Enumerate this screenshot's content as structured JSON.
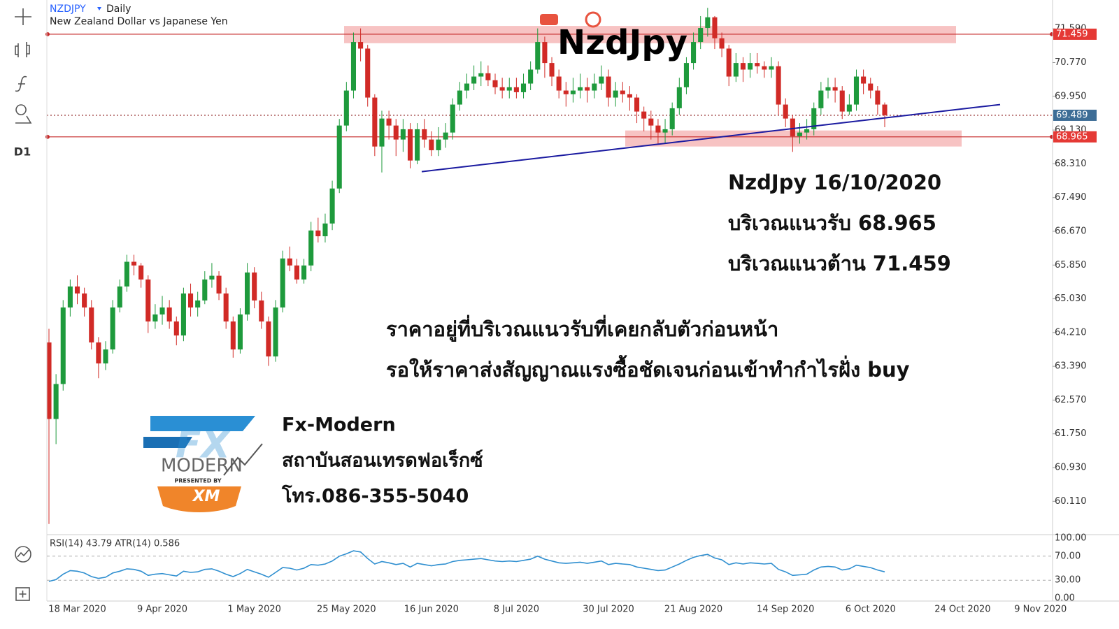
{
  "header": {
    "symbol": "NZDJPY",
    "interval": "Daily",
    "description": "New Zealand Dollar vs Japanese Yen"
  },
  "toolbar": {
    "timeframe": "D1"
  },
  "chart_data": {
    "type": "candlestick",
    "title": "NzdJpy",
    "categories": [
      null,
      null,
      null,
      null,
      "18 Mar 2020",
      null,
      null,
      null,
      null,
      null,
      null,
      null,
      null,
      null,
      null,
      null,
      "9 Apr 2020",
      null,
      null,
      null,
      null,
      null,
      null,
      null,
      null,
      null,
      null,
      null,
      null,
      "1 May 2020",
      null,
      null,
      null,
      null,
      null,
      null,
      null,
      null,
      null,
      null,
      null,
      null,
      "25 May 2020",
      null,
      null,
      null,
      null,
      null,
      null,
      null,
      null,
      null,
      null,
      null,
      "16 Jun 2020",
      null,
      null,
      null,
      null,
      null,
      null,
      null,
      null,
      null,
      null,
      null,
      "8 Jul 2020",
      null,
      null,
      null,
      null,
      null,
      null,
      null,
      null,
      null,
      null,
      null,
      null,
      "30 Jul 2020",
      null,
      null,
      null,
      null,
      null,
      null,
      null,
      null,
      null,
      null,
      null,
      "21 Aug 2020",
      null,
      null,
      null,
      null,
      null,
      null,
      null,
      null,
      null,
      null,
      null,
      null,
      "14 Sep 2020",
      null,
      null,
      null,
      null,
      null,
      null,
      null,
      null,
      null,
      null,
      null,
      "6 Oct 2020",
      null,
      null,
      null,
      null,
      null,
      null,
      null,
      null,
      null,
      null,
      null,
      null,
      "24 Oct 2020",
      null,
      null,
      null,
      null,
      null,
      null,
      null,
      null,
      null,
      null,
      "9 Nov 2020"
    ],
    "ohlc": [
      [
        63.97,
        64.3,
        59.56,
        62.11
      ],
      [
        62.11,
        63.2,
        61.5,
        62.96
      ],
      [
        62.96,
        65.0,
        62.8,
        64.82
      ],
      [
        64.82,
        65.5,
        64.6,
        65.33
      ],
      [
        65.33,
        65.6,
        64.9,
        65.16
      ],
      [
        65.16,
        65.3,
        64.6,
        64.82
      ],
      [
        64.82,
        65.0,
        63.8,
        63.97
      ],
      [
        63.97,
        64.1,
        63.1,
        63.46
      ],
      [
        63.46,
        64.0,
        63.3,
        63.8
      ],
      [
        63.8,
        65.0,
        63.7,
        64.82
      ],
      [
        64.82,
        65.5,
        64.7,
        65.33
      ],
      [
        65.33,
        66.1,
        65.2,
        65.93
      ],
      [
        65.93,
        66.1,
        65.6,
        65.84
      ],
      [
        65.84,
        65.9,
        65.3,
        65.5
      ],
      [
        65.5,
        65.6,
        64.2,
        64.48
      ],
      [
        64.48,
        64.9,
        64.3,
        64.65
      ],
      [
        64.65,
        65.1,
        64.4,
        64.82
      ],
      [
        64.82,
        65.0,
        64.3,
        64.48
      ],
      [
        64.48,
        64.6,
        63.9,
        64.14
      ],
      [
        64.14,
        65.3,
        64.0,
        65.16
      ],
      [
        65.16,
        65.4,
        64.6,
        64.82
      ],
      [
        64.82,
        65.2,
        64.6,
        64.99
      ],
      [
        64.99,
        65.7,
        64.9,
        65.5
      ],
      [
        65.5,
        65.9,
        65.3,
        65.59
      ],
      [
        65.59,
        65.7,
        65.0,
        65.16
      ],
      [
        65.16,
        65.3,
        64.3,
        64.48
      ],
      [
        64.48,
        64.6,
        63.6,
        63.8
      ],
      [
        63.8,
        64.8,
        63.7,
        64.65
      ],
      [
        64.65,
        65.9,
        64.5,
        65.67
      ],
      [
        65.67,
        65.8,
        64.8,
        64.99
      ],
      [
        64.99,
        65.2,
        64.3,
        64.48
      ],
      [
        64.48,
        64.6,
        63.4,
        63.63
      ],
      [
        63.63,
        65.0,
        63.5,
        64.82
      ],
      [
        64.82,
        66.2,
        64.7,
        66.01
      ],
      [
        66.01,
        66.3,
        65.7,
        65.84
      ],
      [
        65.84,
        66.0,
        65.4,
        65.5
      ],
      [
        65.5,
        66.0,
        65.4,
        65.84
      ],
      [
        65.84,
        66.9,
        65.7,
        66.69
      ],
      [
        66.69,
        67.0,
        66.4,
        66.55
      ],
      [
        66.55,
        67.1,
        66.4,
        66.86
      ],
      [
        66.86,
        67.9,
        66.7,
        67.71
      ],
      [
        67.71,
        69.4,
        67.6,
        69.24
      ],
      [
        69.24,
        70.3,
        69.1,
        70.09
      ],
      [
        70.09,
        71.5,
        69.9,
        71.27
      ],
      [
        71.27,
        71.6,
        70.8,
        71.11
      ],
      [
        71.11,
        71.2,
        69.7,
        69.92
      ],
      [
        69.92,
        70.0,
        68.5,
        68.73
      ],
      [
        68.73,
        69.6,
        68.1,
        69.41
      ],
      [
        69.41,
        69.6,
        68.9,
        69.24
      ],
      [
        69.24,
        69.4,
        68.5,
        68.9
      ],
      [
        68.9,
        69.4,
        68.6,
        69.15
      ],
      [
        69.15,
        69.3,
        68.2,
        68.39
      ],
      [
        68.39,
        69.3,
        68.3,
        69.15
      ],
      [
        69.15,
        69.4,
        68.7,
        68.9
      ],
      [
        68.9,
        69.1,
        68.5,
        68.64
      ],
      [
        68.64,
        69.2,
        68.5,
        68.9
      ],
      [
        68.9,
        69.3,
        68.7,
        69.07
      ],
      [
        69.07,
        69.9,
        68.9,
        69.75
      ],
      [
        69.75,
        70.3,
        69.6,
        70.09
      ],
      [
        70.09,
        70.5,
        69.9,
        70.26
      ],
      [
        70.26,
        70.7,
        70.1,
        70.43
      ],
      [
        70.43,
        70.8,
        70.2,
        70.51
      ],
      [
        70.51,
        70.7,
        70.2,
        70.34
      ],
      [
        70.34,
        70.5,
        70.0,
        70.17
      ],
      [
        70.17,
        70.4,
        69.9,
        70.09
      ],
      [
        70.09,
        70.4,
        69.9,
        70.17
      ],
      [
        70.17,
        70.4,
        69.9,
        70.05
      ],
      [
        70.05,
        70.5,
        69.9,
        70.26
      ],
      [
        70.26,
        70.8,
        70.1,
        70.6
      ],
      [
        70.6,
        71.6,
        70.5,
        71.27
      ],
      [
        71.27,
        71.4,
        70.4,
        70.76
      ],
      [
        70.76,
        70.9,
        70.2,
        70.43
      ],
      [
        70.43,
        70.6,
        69.9,
        70.09
      ],
      [
        70.09,
        70.3,
        69.7,
        70.0
      ],
      [
        70.0,
        70.4,
        69.8,
        70.09
      ],
      [
        70.09,
        70.5,
        69.9,
        70.17
      ],
      [
        70.17,
        70.4,
        69.8,
        70.09
      ],
      [
        70.09,
        70.5,
        69.9,
        70.26
      ],
      [
        70.26,
        70.7,
        70.1,
        70.43
      ],
      [
        70.43,
        70.6,
        69.7,
        69.92
      ],
      [
        69.92,
        70.3,
        69.7,
        70.09
      ],
      [
        70.09,
        70.3,
        69.8,
        70.0
      ],
      [
        70.0,
        70.2,
        69.6,
        69.92
      ],
      [
        69.92,
        70.0,
        69.3,
        69.58
      ],
      [
        69.58,
        69.7,
        69.1,
        69.41
      ],
      [
        69.41,
        69.6,
        68.9,
        69.24
      ],
      [
        69.24,
        69.4,
        68.8,
        69.07
      ],
      [
        69.07,
        69.4,
        68.8,
        69.15
      ],
      [
        69.15,
        69.8,
        69.0,
        69.66
      ],
      [
        69.66,
        70.4,
        69.5,
        70.17
      ],
      [
        70.17,
        70.9,
        70.0,
        70.76
      ],
      [
        70.76,
        71.5,
        70.6,
        71.27
      ],
      [
        71.27,
        71.9,
        71.1,
        71.61
      ],
      [
        71.61,
        72.1,
        71.4,
        71.87
      ],
      [
        71.87,
        71.9,
        71.1,
        71.36
      ],
      [
        71.36,
        71.5,
        70.9,
        71.11
      ],
      [
        71.11,
        71.2,
        70.2,
        70.43
      ],
      [
        70.43,
        71.0,
        70.3,
        70.76
      ],
      [
        70.76,
        70.9,
        70.3,
        70.6
      ],
      [
        70.6,
        71.0,
        70.4,
        70.76
      ],
      [
        70.76,
        71.0,
        70.5,
        70.68
      ],
      [
        70.68,
        70.8,
        70.4,
        70.6
      ],
      [
        70.6,
        70.9,
        70.4,
        70.68
      ],
      [
        70.68,
        70.8,
        69.5,
        69.75
      ],
      [
        69.75,
        69.9,
        69.2,
        69.41
      ],
      [
        69.41,
        69.5,
        68.6,
        68.98
      ],
      [
        68.98,
        69.3,
        68.8,
        69.07
      ],
      [
        69.07,
        69.4,
        68.9,
        69.15
      ],
      [
        69.15,
        69.8,
        69.0,
        69.66
      ],
      [
        69.66,
        70.3,
        69.5,
        70.09
      ],
      [
        70.09,
        70.4,
        69.9,
        70.17
      ],
      [
        70.17,
        70.4,
        69.8,
        70.09
      ],
      [
        70.09,
        70.2,
        69.4,
        69.58
      ],
      [
        69.58,
        70.0,
        69.5,
        69.75
      ],
      [
        69.75,
        70.6,
        69.6,
        70.43
      ],
      [
        70.43,
        70.6,
        70.0,
        70.26
      ],
      [
        70.26,
        70.4,
        69.9,
        70.09
      ],
      [
        70.09,
        70.2,
        69.5,
        69.75
      ],
      [
        69.75,
        69.8,
        69.2,
        69.49
      ],
      null,
      null,
      null,
      null,
      null,
      null,
      null,
      null,
      null,
      null,
      null,
      null,
      null,
      null,
      null,
      null,
      null,
      null,
      null,
      null,
      null,
      null
    ],
    "up_color": "#1e9a3c",
    "down_color": "#d12a26",
    "ylim": [
      59.3,
      72.29
    ],
    "yticks": [
      {
        "value": 71.59,
        "label": "71.590"
      },
      {
        "value": 70.77,
        "label": "70.770"
      },
      {
        "value": 69.95,
        "label": "69.950"
      },
      {
        "value": 69.13,
        "label": "69.130"
      },
      {
        "value": 68.31,
        "label": "68.310"
      },
      {
        "value": 67.49,
        "label": "67.490"
      },
      {
        "value": 66.67,
        "label": "66.670"
      },
      {
        "value": 65.85,
        "label": "65.850"
      },
      {
        "value": 65.03,
        "label": "65.030"
      },
      {
        "value": 64.21,
        "label": "64.210"
      },
      {
        "value": 63.39,
        "label": "63.390"
      },
      {
        "value": 62.57,
        "label": "62.570"
      },
      {
        "value": 61.75,
        "label": "61.750"
      },
      {
        "value": 60.93,
        "label": "60.930"
      },
      {
        "value": 60.11,
        "label": "60.110"
      }
    ],
    "levels": [
      {
        "value": 71.459,
        "color": "#c62828",
        "style": "solid",
        "label_color": "#e53935"
      },
      {
        "value": 69.489,
        "color": "#8b1a1a",
        "style": "dotted",
        "label_color": "#3d6d96"
      },
      {
        "value": 68.965,
        "color": "#c62828",
        "style": "solid",
        "label_color": "#e53935"
      }
    ],
    "zones": [
      {
        "from": 71.24,
        "to": 71.66,
        "color": "#f6b8b8"
      },
      {
        "from": 68.73,
        "to": 69.12,
        "color": "#f6b8b8"
      }
    ],
    "trendline": {
      "values": [
        68.12,
        69.75
      ],
      "color": "#1a1aa0"
    },
    "rsi": {
      "label": "RSI(14) 43.79 ATR(14) 0.586",
      "color": "#2f8fd0",
      "ylim": [
        0,
        100
      ],
      "yticks": [
        {
          "value": 100,
          "label": "100.00"
        },
        {
          "value": 70,
          "label": "70.00"
        },
        {
          "value": 30,
          "label": "30.00"
        },
        {
          "value": 0,
          "label": "0.00"
        }
      ],
      "values": [
        28,
        31,
        40,
        46,
        45,
        42,
        36,
        33,
        35,
        42,
        45,
        49,
        48,
        45,
        38,
        40,
        41,
        39,
        37,
        45,
        43,
        44,
        48,
        49,
        45,
        40,
        36,
        41,
        48,
        44,
        40,
        35,
        43,
        51,
        50,
        47,
        50,
        56,
        55,
        57,
        62,
        70,
        74,
        79,
        77,
        66,
        57,
        61,
        59,
        56,
        58,
        52,
        58,
        56,
        54,
        56,
        57,
        61,
        63,
        64,
        65,
        66,
        64,
        62,
        61,
        62,
        61,
        63,
        65,
        70,
        65,
        62,
        59,
        58,
        59,
        60,
        58,
        60,
        62,
        56,
        58,
        57,
        56,
        52,
        50,
        48,
        46,
        47,
        52,
        57,
        63,
        68,
        71,
        73,
        67,
        64,
        56,
        59,
        57,
        59,
        58,
        57,
        58,
        48,
        44,
        38,
        39,
        40,
        47,
        52,
        53,
        52,
        47,
        49,
        55,
        53,
        51,
        47,
        44,
        null,
        null,
        null,
        null,
        null,
        null,
        null,
        null,
        null,
        null,
        null,
        null,
        null,
        null,
        null,
        null,
        null,
        null,
        null,
        null,
        null,
        null
      ]
    }
  },
  "annotations": {
    "heading": "NzdJpy 16/10/2020",
    "support": "บริเวณแนวรับ 68.965",
    "resistance": "บริเวณแนวต้าน 71.459",
    "line1": "ราคาอยู่ที่บริเวณแนวรับที่เคยกลับตัวก่อนหน้า",
    "line2": "รอให้ราคาส่งสัญญาณแรงซื้อชัดเจนก่อนเข้าทำกำไรฝั่ง buy"
  },
  "branding": {
    "logo_fx": "FX",
    "logo_modern": "MODERN",
    "presented_by": "PRESENTED BY",
    "broker": "XM",
    "name": "Fx-Modern",
    "school": "สถาบันสอนเทรดฟอเร็กซ์",
    "phone": "โทร.086-355-5040"
  }
}
